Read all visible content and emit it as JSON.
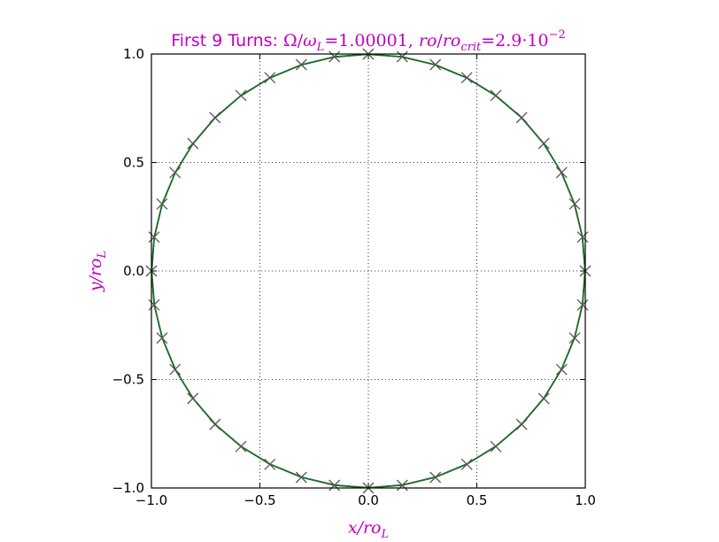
{
  "chart_data": {
    "type": "line",
    "title": {
      "prefix": "First 9 Turns: ",
      "omega": "Ω",
      "slash1": "/",
      "omega_l": "ω",
      "sub_l": "L",
      "eq1": "=1.00001, ",
      "ro": "ro",
      "slash2": "/",
      "ro2": "ro",
      "sub_crit": "crit",
      "eq2": "=2.9·10",
      "sup_exp": "−2"
    },
    "xlabel": {
      "base": "x/ro",
      "sub": "L"
    },
    "ylabel": {
      "base": "y/ro",
      "sub": "L"
    },
    "xlim": [
      -1.0,
      1.0
    ],
    "ylim": [
      -1.0,
      1.0
    ],
    "xticks": [
      -1.0,
      -0.5,
      0.0,
      0.5,
      1.0
    ],
    "yticks": [
      -1.0,
      -0.5,
      0.0,
      0.5,
      1.0
    ],
    "xtick_labels": [
      "−1.0",
      "−0.5",
      "0.0",
      "0.5",
      "1.0"
    ],
    "ytick_labels": [
      "−1.0",
      "−0.5",
      "0.0",
      "0.5",
      "1.0"
    ],
    "grid": true,
    "grid_style": "dotted",
    "series": [
      {
        "kind": "curve",
        "description_color": "#1e6b2a",
        "shape": "unit circle",
        "radius": 1.0,
        "center": [
          0,
          0
        ],
        "turns": 9
      },
      {
        "kind": "markers",
        "marker": "x",
        "color": "#555555",
        "points_angle_step_deg": 9,
        "count": 40
      }
    ],
    "colors": {
      "title": "#bf00bf",
      "axis_label": "#bf00bf",
      "curve": "#1e6b2a",
      "marker": "#555555",
      "grid": "#000000"
    }
  }
}
